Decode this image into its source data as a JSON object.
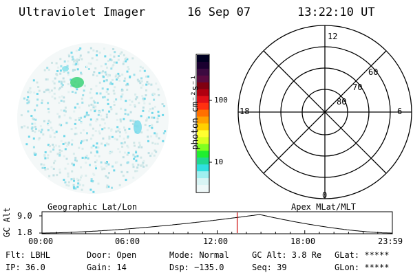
{
  "header": {
    "instrument": "Ultraviolet Imager",
    "date": "16 Sep 07",
    "time": "13:22:10 UT"
  },
  "colorbar": {
    "unit_label": "photon cm⁻²s⁻¹",
    "ticks": [
      "100",
      "10"
    ],
    "colors": [
      "#000022",
      "#1a0030",
      "#3c0a40",
      "#5a0a40",
      "#800010",
      "#b00010",
      "#e01018",
      "#ff3010",
      "#ff7000",
      "#ffa000",
      "#ffd000",
      "#ffff30",
      "#d8ff20",
      "#80ff20",
      "#20ee30",
      "#20d890",
      "#30e0e0",
      "#a0f0f0",
      "#d8f4f4",
      "#eef8f8"
    ]
  },
  "polar": {
    "labels": {
      "top": "12",
      "bottom": "0",
      "left": "18",
      "right": "6"
    },
    "rings": [
      "60",
      "70",
      "80"
    ]
  },
  "sections": {
    "left": "Geographic Lat/Lon",
    "right": "Apex MLat/MLT"
  },
  "altitude_plot": {
    "ylabel": "GC Alt",
    "ymax": "9.0",
    "ymin": "1.8",
    "xticks": [
      "00:00",
      "06:00",
      "12:00",
      "18:00",
      "23:59"
    ],
    "marker_time_hours": 13.37,
    "marker_color": "#cc0000",
    "min_time_hours": 14.9
  },
  "footer": {
    "row1": [
      "Flt: LBHL",
      "Door: Open",
      "Mode: Normal",
      "GC Alt: 3.8 Re",
      "GLat: *****"
    ],
    "row2": [
      "IP: 36.0",
      "Gain: 14",
      "Dsp: −135.0",
      "Seq: 39",
      "GLon: *****"
    ]
  }
}
